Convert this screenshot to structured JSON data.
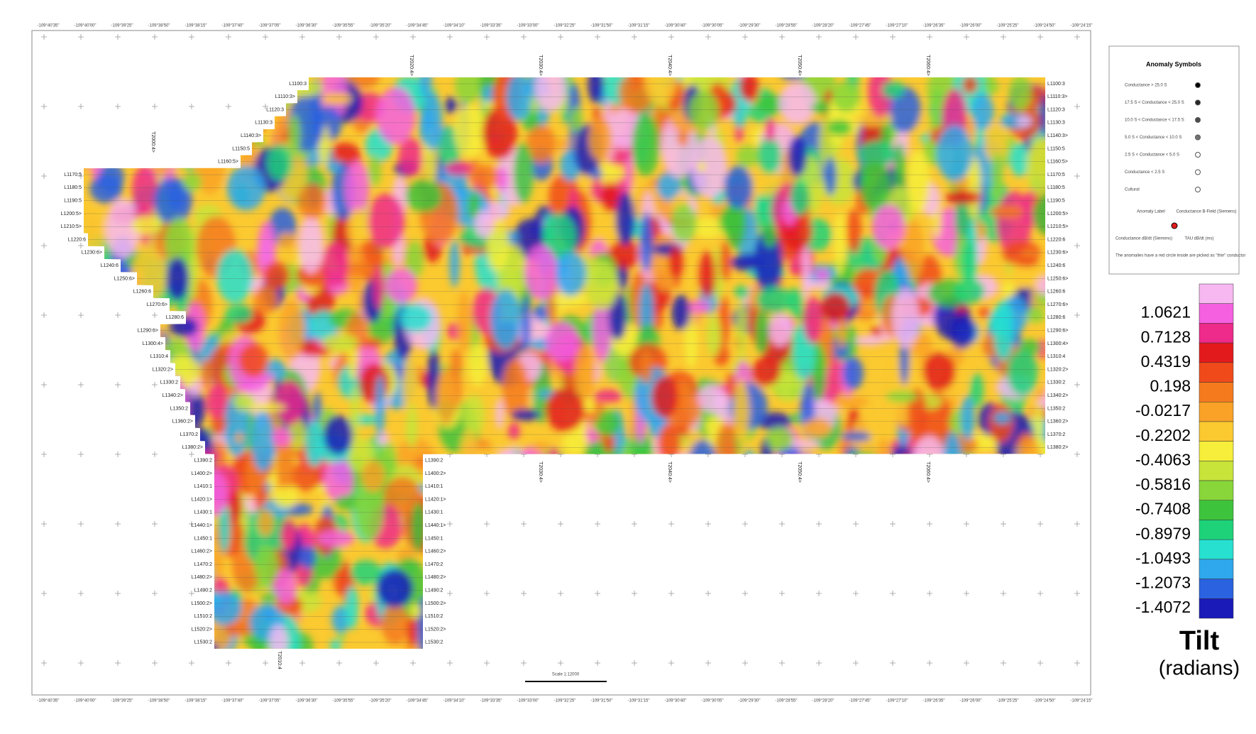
{
  "map": {
    "lines": [
      "L1100:3",
      "L1110:3>",
      "L1120:3",
      "L1130:3",
      "L1140:3>",
      "L1150:5",
      "L1160:5>",
      "L1170:5",
      "L1180:5",
      "L1190:5",
      "L1200:5>",
      "L1210:5>",
      "L1220:6",
      "L1230:6>",
      "L1240:6",
      "L1250:6>",
      "L1260:6",
      "L1270:6>",
      "L1280:6",
      "L1290:6>",
      "L1300:4>",
      "L1310:4",
      "L1320:2>",
      "L1330:2",
      "L1340:2>",
      "L1350:2",
      "L1360:2>",
      "L1370:2",
      "L1380:2>",
      "L1390:2",
      "L1400:2>",
      "L1410:1",
      "L1420:1>",
      "L1430:1",
      "L1440:1>",
      "L1450:1",
      "L1460:2>",
      "L1470:2",
      "L1480:2>",
      "L1490:2",
      "L1500:2>",
      "L1510:2",
      "L1520:2>",
      "L1530:2"
    ],
    "tie_lines": [
      "T2000:4>",
      "T2010:4",
      "T2020:4>",
      "T2030:4>",
      "T2040:4>",
      "T2050:4>",
      "T2060:4>"
    ],
    "longitudes": [
      "-109°40'35\"",
      "-109°40'00\"",
      "-109°39'25\"",
      "-109°38'50\"",
      "-109°38'15\"",
      "-109°37'40\"",
      "-109°37'05\"",
      "-109°36'30\"",
      "-109°35'55\"",
      "-109°35'20\"",
      "-109°34'45\"",
      "-109°34'10\"",
      "-109°33'35\"",
      "-109°33'00\"",
      "-109°32'25\"",
      "-109°31'50\"",
      "-109°31'15\"",
      "-109°30'40\"",
      "-109°30'05\"",
      "-109°29'30\"",
      "-109°28'55\"",
      "-109°28'20\"",
      "-109°27'45\"",
      "-109°27'10\"",
      "-109°26'35\"",
      "-109°26'00\"",
      "-109°25'25\"",
      "-109°24'50\"",
      "-109°24'15\""
    ],
    "scale": "Scale 1:12000"
  },
  "legend": {
    "title": "Anomaly Symbols",
    "items": [
      "Conductance > 25.0 S",
      "17.5 S < Conductance < 25.0 S",
      "10.0 S < Conductance < 17.5 S",
      "5.0 S < Conductance < 10.0 S",
      "2.5 S < Conductance < 5.0 S",
      "Conductance < 2.5 S",
      "Cultural"
    ],
    "anomaly_label": "Anomaly Label",
    "bfield": "Conductance B-Field (Siemens)",
    "dbdt": "Conductance dB/dt (Siemens)",
    "tau": "TAU dB/dt (ms)",
    "note": "The anomalies have a red circle inside are picked as \"thin\" conductor"
  },
  "colorbar": {
    "labels": [
      1.0621,
      0.7128,
      0.4319,
      0.198,
      -0.0217,
      -0.2202,
      -0.4063,
      -0.5816,
      -0.7408,
      -0.8979,
      -1.0493,
      -1.2073,
      -1.4072
    ],
    "colors": [
      "#f7b8f2",
      "#f560e0",
      "#ee2a8a",
      "#e31a1c",
      "#f04a1a",
      "#f57a1e",
      "#f9a227",
      "#fbc930",
      "#f6ee3a",
      "#c8e43a",
      "#88d63a",
      "#3ec43c",
      "#1ed27a",
      "#27e0d0",
      "#2fa8ee",
      "#2a62e0",
      "#1a1ab8"
    ],
    "title": "Tilt",
    "unit": "(radians)"
  }
}
